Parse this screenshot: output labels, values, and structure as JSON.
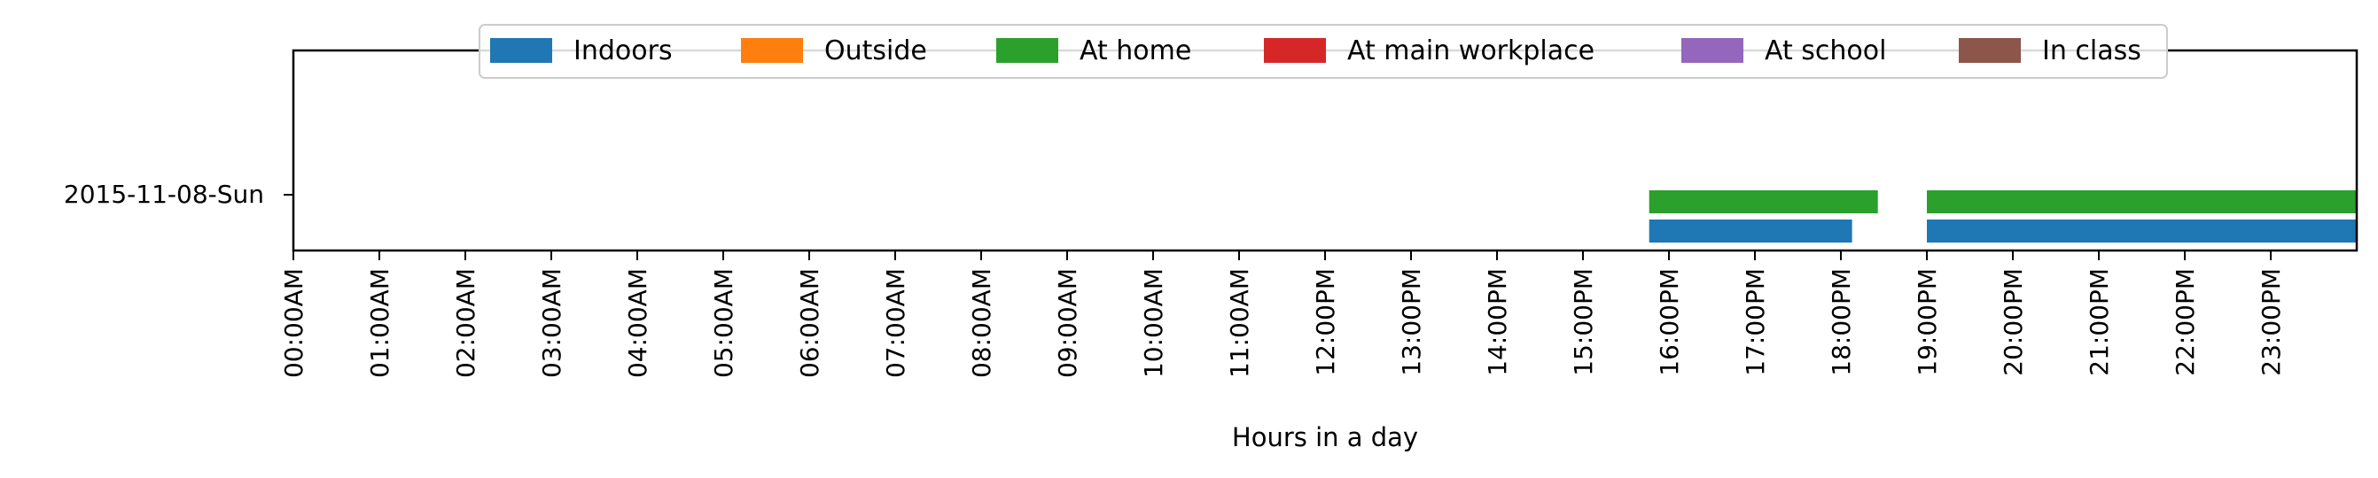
{
  "chart_data": {
    "type": "timeline",
    "row_label": "2015-11-08-Sun",
    "xlabel": "Hours in a day",
    "xlim": [
      0,
      24
    ],
    "x_ticks": [
      "00:00AM",
      "01:00AM",
      "02:00AM",
      "03:00AM",
      "04:00AM",
      "05:00AM",
      "06:00AM",
      "07:00AM",
      "08:00AM",
      "09:00AM",
      "10:00AM",
      "11:00AM",
      "12:00PM",
      "13:00PM",
      "14:00PM",
      "15:00PM",
      "16:00PM",
      "17:00PM",
      "18:00PM",
      "19:00PM",
      "20:00PM",
      "21:00PM",
      "22:00PM",
      "23:00PM"
    ],
    "legend_position": "top-center",
    "legend": [
      {
        "label": "Indoors",
        "color": "#1f77b4"
      },
      {
        "label": "Outside",
        "color": "#ff7f0e"
      },
      {
        "label": "At home",
        "color": "#2ca02c"
      },
      {
        "label": "At main workplace",
        "color": "#d62728"
      },
      {
        "label": "At school",
        "color": "#9467bd"
      },
      {
        "label": "In class",
        "color": "#8c564b"
      }
    ],
    "series": [
      {
        "name": "Indoors",
        "color": "#1f77b4",
        "level": 0,
        "intervals": [
          [
            15.77,
            18.13
          ],
          [
            19.0,
            24.0
          ]
        ]
      },
      {
        "name": "At home",
        "color": "#2ca02c",
        "level": 1,
        "intervals": [
          [
            15.77,
            18.43
          ],
          [
            19.0,
            24.0
          ]
        ]
      }
    ]
  }
}
